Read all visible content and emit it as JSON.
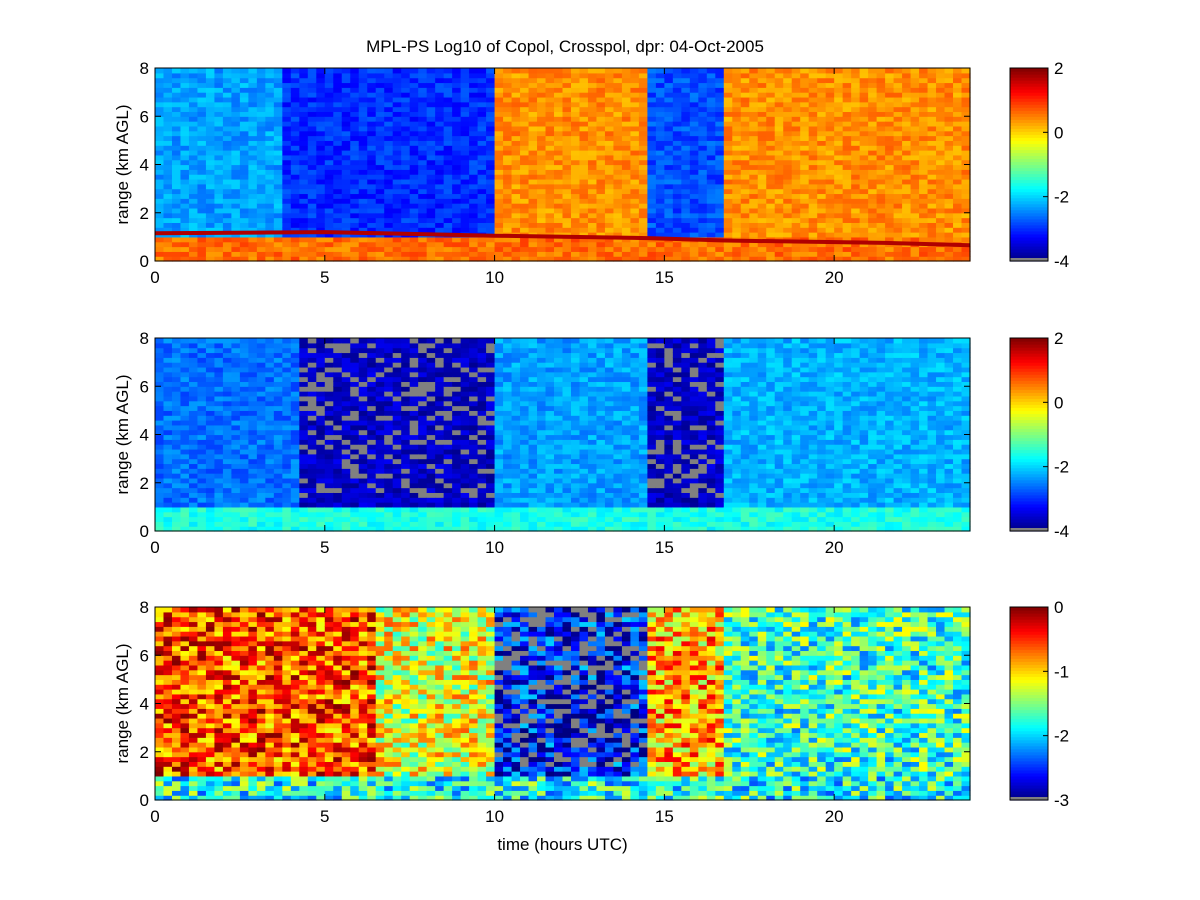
{
  "figure": {
    "title": "MPL-PS Log10 of Copol, Crosspol, dpr: 04-Oct-2005"
  },
  "colors": {
    "jet_low": "#00008f",
    "jet_mid": "#80ff80",
    "jet_high": "#800000",
    "nodata_gray": "#808080",
    "axis": "#000000"
  },
  "chart_data": [
    {
      "type": "heatmap",
      "panel": "copol",
      "xlabel": "",
      "ylabel": "range (km AGL)",
      "xlim": [
        0,
        24
      ],
      "ylim": [
        0,
        8
      ],
      "xticks": [
        0,
        5,
        10,
        15,
        20
      ],
      "yticks": [
        0,
        2,
        4,
        6,
        8
      ],
      "clim": [
        -4,
        2
      ],
      "cticks": [
        -4,
        -2,
        0,
        2
      ],
      "boundary_layer_top_km": [
        {
          "t": 0,
          "z": 1.15
        },
        {
          "t": 5,
          "z": 1.2
        },
        {
          "t": 10,
          "z": 1.05
        },
        {
          "t": 14.5,
          "z": 0.95
        },
        {
          "t": 16.8,
          "z": 0.85
        },
        {
          "t": 21.5,
          "z": 0.75
        },
        {
          "t": 24,
          "z": 0.65
        }
      ],
      "segments": [
        {
          "t0": 0,
          "t1": 3.7,
          "log10_value": -2.3
        },
        {
          "t0": 3.7,
          "t1": 10,
          "log10_value": -3.0
        },
        {
          "t0": 10,
          "t1": 14.5,
          "log10_value": 0.4
        },
        {
          "t0": 14.5,
          "t1": 16.8,
          "log10_value": -2.8
        },
        {
          "t0": 16.8,
          "t1": 24,
          "log10_value": 0.4
        }
      ]
    },
    {
      "type": "heatmap",
      "panel": "crosspol",
      "xlabel": "",
      "ylabel": "range (km AGL)",
      "xlim": [
        0,
        24
      ],
      "ylim": [
        0,
        8
      ],
      "xticks": [
        0,
        5,
        10,
        15,
        20
      ],
      "yticks": [
        0,
        2,
        4,
        6,
        8
      ],
      "clim": [
        -4,
        2
      ],
      "cticks": [
        -4,
        -2,
        0,
        2
      ],
      "segments": [
        {
          "t0": 0,
          "t1": 4.2,
          "log10_value": -2.6
        },
        {
          "t0": 4.2,
          "t1": 10,
          "log10_value": -3.6
        },
        {
          "t0": 10,
          "t1": 14.5,
          "log10_value": -2.3
        },
        {
          "t0": 14.5,
          "t1": 16.8,
          "log10_value": -3.6
        },
        {
          "t0": 16.8,
          "t1": 24,
          "log10_value": -2.2
        }
      ]
    },
    {
      "type": "heatmap",
      "panel": "depolarization_ratio",
      "xlabel": "time (hours UTC)",
      "ylabel": "range (km AGL)",
      "xlim": [
        0,
        24
      ],
      "ylim": [
        0,
        8
      ],
      "xticks": [
        0,
        5,
        10,
        15,
        20
      ],
      "yticks": [
        0,
        2,
        4,
        6,
        8
      ],
      "clim": [
        -3,
        0
      ],
      "cticks": [
        -3,
        -2,
        -1,
        0
      ],
      "segments": [
        {
          "t0": 0,
          "t1": 6.5,
          "log10_value": -0.6
        },
        {
          "t0": 6.5,
          "t1": 10,
          "log10_value": -1.2
        },
        {
          "t0": 10,
          "t1": 14.5,
          "log10_value": -2.6
        },
        {
          "t0": 14.5,
          "t1": 16.8,
          "log10_value": -0.9
        },
        {
          "t0": 16.8,
          "t1": 24,
          "log10_value": -1.7
        }
      ]
    }
  ]
}
